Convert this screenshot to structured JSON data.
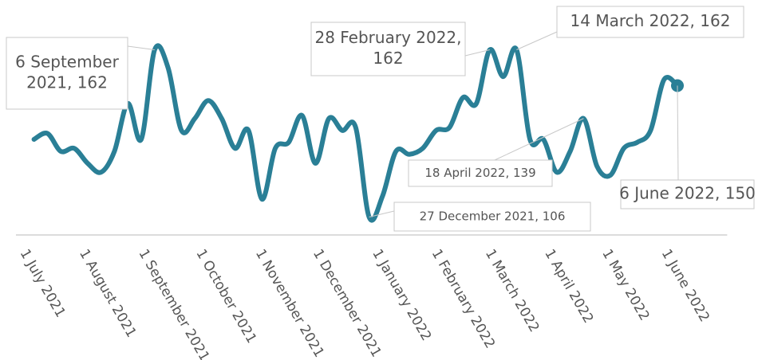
{
  "chart_data": {
    "type": "line",
    "x": [
      "2021-07-05",
      "2021-07-12",
      "2021-07-19",
      "2021-07-26",
      "2021-08-02",
      "2021-08-09",
      "2021-08-16",
      "2021-08-23",
      "2021-08-30",
      "2021-09-06",
      "2021-09-13",
      "2021-09-20",
      "2021-09-27",
      "2021-10-04",
      "2021-10-11",
      "2021-10-18",
      "2021-10-25",
      "2021-11-01",
      "2021-11-08",
      "2021-11-15",
      "2021-11-22",
      "2021-11-29",
      "2021-12-06",
      "2021-12-13",
      "2021-12-20",
      "2021-12-27",
      "2022-01-03",
      "2022-01-10",
      "2022-01-17",
      "2022-01-24",
      "2022-01-31",
      "2022-02-07",
      "2022-02-14",
      "2022-02-21",
      "2022-02-28",
      "2022-03-07",
      "2022-03-14",
      "2022-03-21",
      "2022-03-28",
      "2022-04-04",
      "2022-04-11",
      "2022-04-18",
      "2022-04-25",
      "2022-05-02",
      "2022-05-09",
      "2022-05-16",
      "2022-05-23",
      "2022-05-30",
      "2022-06-06"
    ],
    "series": [
      {
        "color": "#2a7f96",
        "values": [
          132,
          134,
          128,
          129,
          124,
          121,
          128,
          144,
          132,
          162,
          156,
          135,
          139,
          145,
          139,
          129,
          135,
          112,
          129,
          131,
          140,
          124,
          139,
          135,
          136,
          106,
          113,
          128,
          127,
          129,
          135,
          136,
          146,
          144,
          162,
          153,
          162,
          132,
          132,
          121,
          128,
          139,
          123,
          120,
          129,
          131,
          135,
          152,
          150
        ]
      }
    ],
    "xlim": [
      "2021-07-01",
      "2022-07-02"
    ],
    "ylim": [
      100,
      178
    ],
    "xticks": [
      {
        "value": "2021-07-01",
        "label": "1 July 2021"
      },
      {
        "value": "2021-08-01",
        "label": "1 August 2021"
      },
      {
        "value": "2021-09-01",
        "label": "1 September 2021"
      },
      {
        "value": "2021-10-01",
        "label": "1 October 2021"
      },
      {
        "value": "2021-11-01",
        "label": "1 November 2021"
      },
      {
        "value": "2021-12-01",
        "label": "1 December 2021"
      },
      {
        "value": "2022-01-01",
        "label": "1 January 2022"
      },
      {
        "value": "2022-02-01",
        "label": "1 February 2022"
      },
      {
        "value": "2022-03-01",
        "label": "1 March 2022"
      },
      {
        "value": "2022-04-01",
        "label": "1 April 2022"
      },
      {
        "value": "2022-05-01",
        "label": "1 May 2022"
      },
      {
        "value": "2022-06-01",
        "label": "1 June 2022"
      }
    ],
    "annotations": [
      {
        "lines": [
          "6 September",
          "2021, 162"
        ]
      },
      {
        "lines": [
          "28 February 2022,",
          "162"
        ]
      },
      {
        "lines": [
          "14 March 2022, 162"
        ]
      },
      {
        "lines": [
          "18 April 2022, 139"
        ]
      },
      {
        "lines": [
          "27 December 2021, 106"
        ]
      },
      {
        "lines": [
          "6 June 2022, 150"
        ]
      }
    ]
  }
}
